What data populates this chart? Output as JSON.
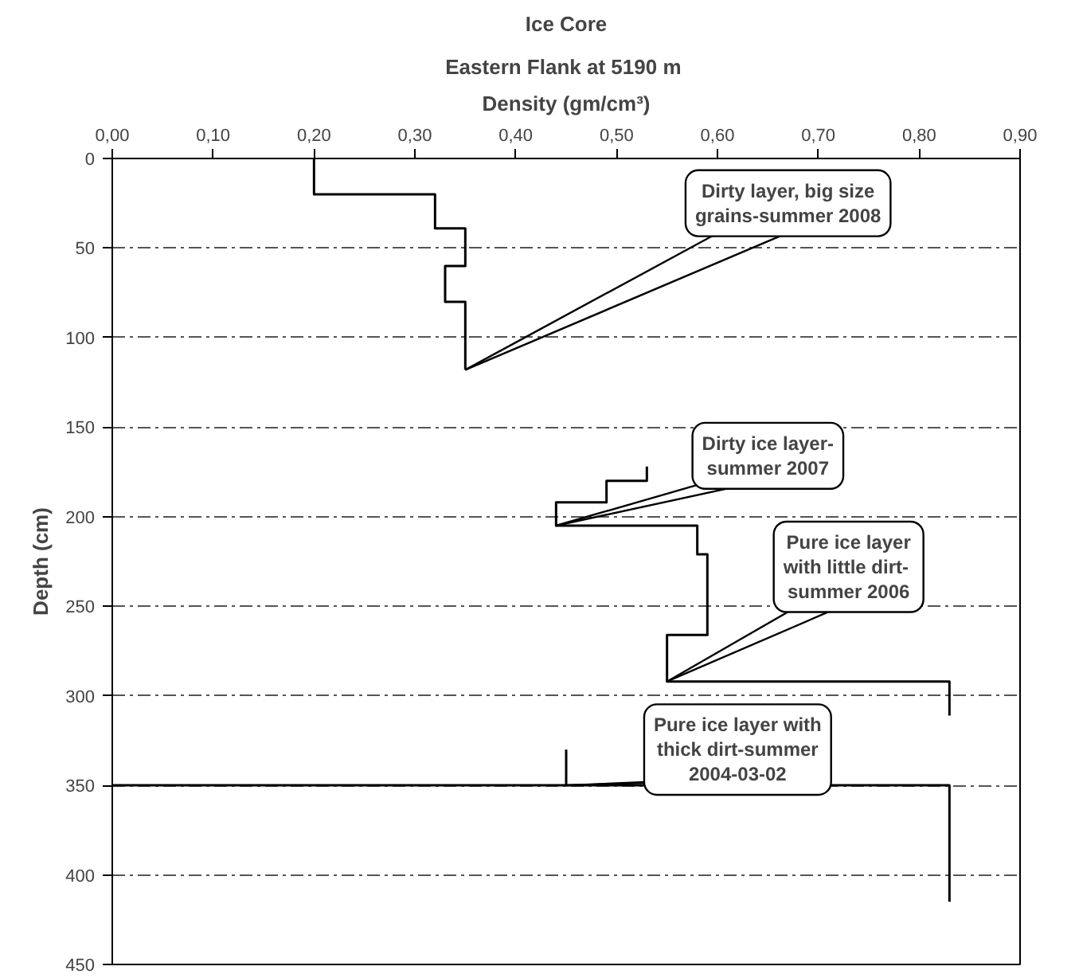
{
  "chart_data": {
    "type": "line",
    "title": "Ice Core",
    "subtitle": "Eastern Flank at 5190  m",
    "xlabel": "Density (gm/cm³)",
    "ylabel": "Depth (cm)",
    "xlim": [
      0,
      0.9
    ],
    "ylim": [
      450,
      0
    ],
    "xticks": [
      {
        "value": 0,
        "label": "0,00"
      },
      {
        "value": 0.1,
        "label": "0,10"
      },
      {
        "value": 0.2,
        "label": "0,20"
      },
      {
        "value": 0.3,
        "label": "0,30"
      },
      {
        "value": 0.4,
        "label": "0,40"
      },
      {
        "value": 0.5,
        "label": "0,50"
      },
      {
        "value": 0.6,
        "label": "0,60"
      },
      {
        "value": 0.7,
        "label": "0,70"
      },
      {
        "value": 0.8,
        "label": "0,80"
      },
      {
        "value": 0.9,
        "label": "0,90"
      }
    ],
    "yticks": [
      0,
      50,
      100,
      150,
      200,
      250,
      300,
      350,
      400,
      450
    ],
    "grid": "y",
    "marker": "none",
    "line_style": "solid",
    "series": [
      {
        "color": "#000000",
        "x": [
          0.2,
          0.2,
          0.32,
          0.32,
          0.35,
          0.35,
          0.33,
          0.33,
          0.35,
          0.35
        ],
        "values": [
          0,
          20,
          20,
          39,
          39,
          60,
          60,
          80,
          80,
          118
        ]
      },
      {
        "color": "#000000",
        "x": [
          0.53,
          0.53,
          0.49,
          0.49,
          0.44,
          0.44,
          0.58,
          0.58,
          0.59,
          0.59,
          0.55,
          0.55,
          0.83,
          0.83
        ],
        "values": [
          172,
          180,
          180,
          192,
          192,
          205,
          205,
          221,
          221,
          266,
          266,
          292,
          292,
          311
        ]
      },
      {
        "color": "#000000",
        "x": [
          0.45,
          0.45,
          0,
          0.83,
          0.83
        ],
        "values": [
          330,
          350,
          350,
          350,
          415
        ]
      }
    ],
    "annotations": [
      {
        "text": "Dirty layer, big size\ngrains-summer 2008",
        "x": 0.35,
        "y": 118
      },
      {
        "text": "Dirty ice layer-\nsummer 2007",
        "x": 0.44,
        "y": 205
      },
      {
        "text": "Pure ice layer\nwith  little dirt-\nsummer 2006",
        "x": 0.55,
        "y": 292
      },
      {
        "text": "Pure ice layer with\nthick dirt-summer\n2004-03-02",
        "x": 0.45,
        "y": 350
      }
    ]
  }
}
